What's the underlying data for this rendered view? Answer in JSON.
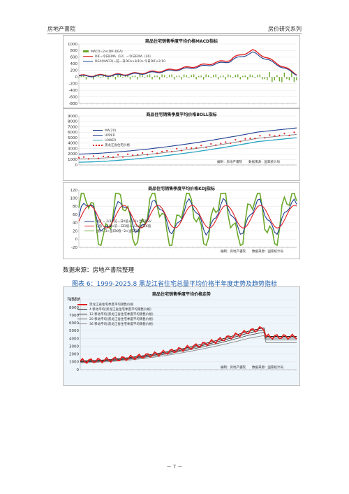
{
  "header": {
    "left": "房地产書院",
    "right": "房价研究系列"
  },
  "panels": {
    "macd": {
      "title": "商品住宅销售季度平均价格MACD指标",
      "y_ticks": [
        "1000",
        "800",
        "600",
        "400",
        "200",
        "0",
        "-200",
        "-400",
        "-600",
        "-800"
      ],
      "legend": [
        "MACD=2×(DIF-DEA)",
        "DIF=今日EMA（12）－今日EMA（26）",
        "DEA(MACD)=前一日DEA×8/10+今日DIF×2/10"
      ]
    },
    "boll": {
      "title": "商品住宅销售季度平均价格BOLL指标",
      "y_ticks": [
        "9000",
        "8000",
        "7000",
        "6000",
        "5000",
        "4000",
        "3000",
        "2000",
        "1000",
        "0"
      ],
      "legend": [
        "黑龙江省住宅价格",
        "MA(20)",
        "UPPER",
        "LOWER"
      ],
      "note": "编制：房地产書院　　数据来源：国家统计局"
    },
    "kdj": {
      "title": "商品住宅销售季度平均价格KDJ指标",
      "y_ticks": [
        "120",
        "100",
        "80",
        "60",
        "40",
        "20",
        "0",
        "-20"
      ],
      "legend": [
        "K值 = 2/3×前一日K值+1/3×当日RSV",
        "D值 = 2/3×前一日D值+1/3×当日K值",
        "J值 = 3×当日K值−2×当日D值"
      ],
      "note": "编制：房地产書院　　数据来源：国家统计局"
    },
    "trend": {
      "title": "商品住宅销售季度平均价格走势",
      "unit": "元/平方米",
      "y_ticks": [
        "9000",
        "8000",
        "7000",
        "6000",
        "5000",
        "4000",
        "3000",
        "2000",
        "1000",
        "0"
      ],
      "legend": [
        "黑龙江省住宅季度平均销售价格",
        "4 移动平均(黑龙江省住宅季度平均销售价格)",
        "12 移动平均(黑龙江省住宅季度平均销售价格)",
        "20 移动平均(黑龙江省住宅季度平均销售价格)",
        "36 移动平均(黑龙江省住宅季度平均销售价格)"
      ],
      "note": "编制：房地产書院　　数据来源：国家统计局"
    }
  },
  "source_line": "数据来源：房地产書院整理",
  "figure_caption": "图表 6：1999-2025.8 黑龙江省住宅总量平均价格半年度走势及趋势指标",
  "page_number": "－ 7 －",
  "colors": {
    "red": "#e02020",
    "green": "#6aa82a",
    "darkblue": "#1f3f8f",
    "teal": "#27a3c0",
    "gray": "#8a8a8a",
    "caption": "#1f5fae"
  }
}
